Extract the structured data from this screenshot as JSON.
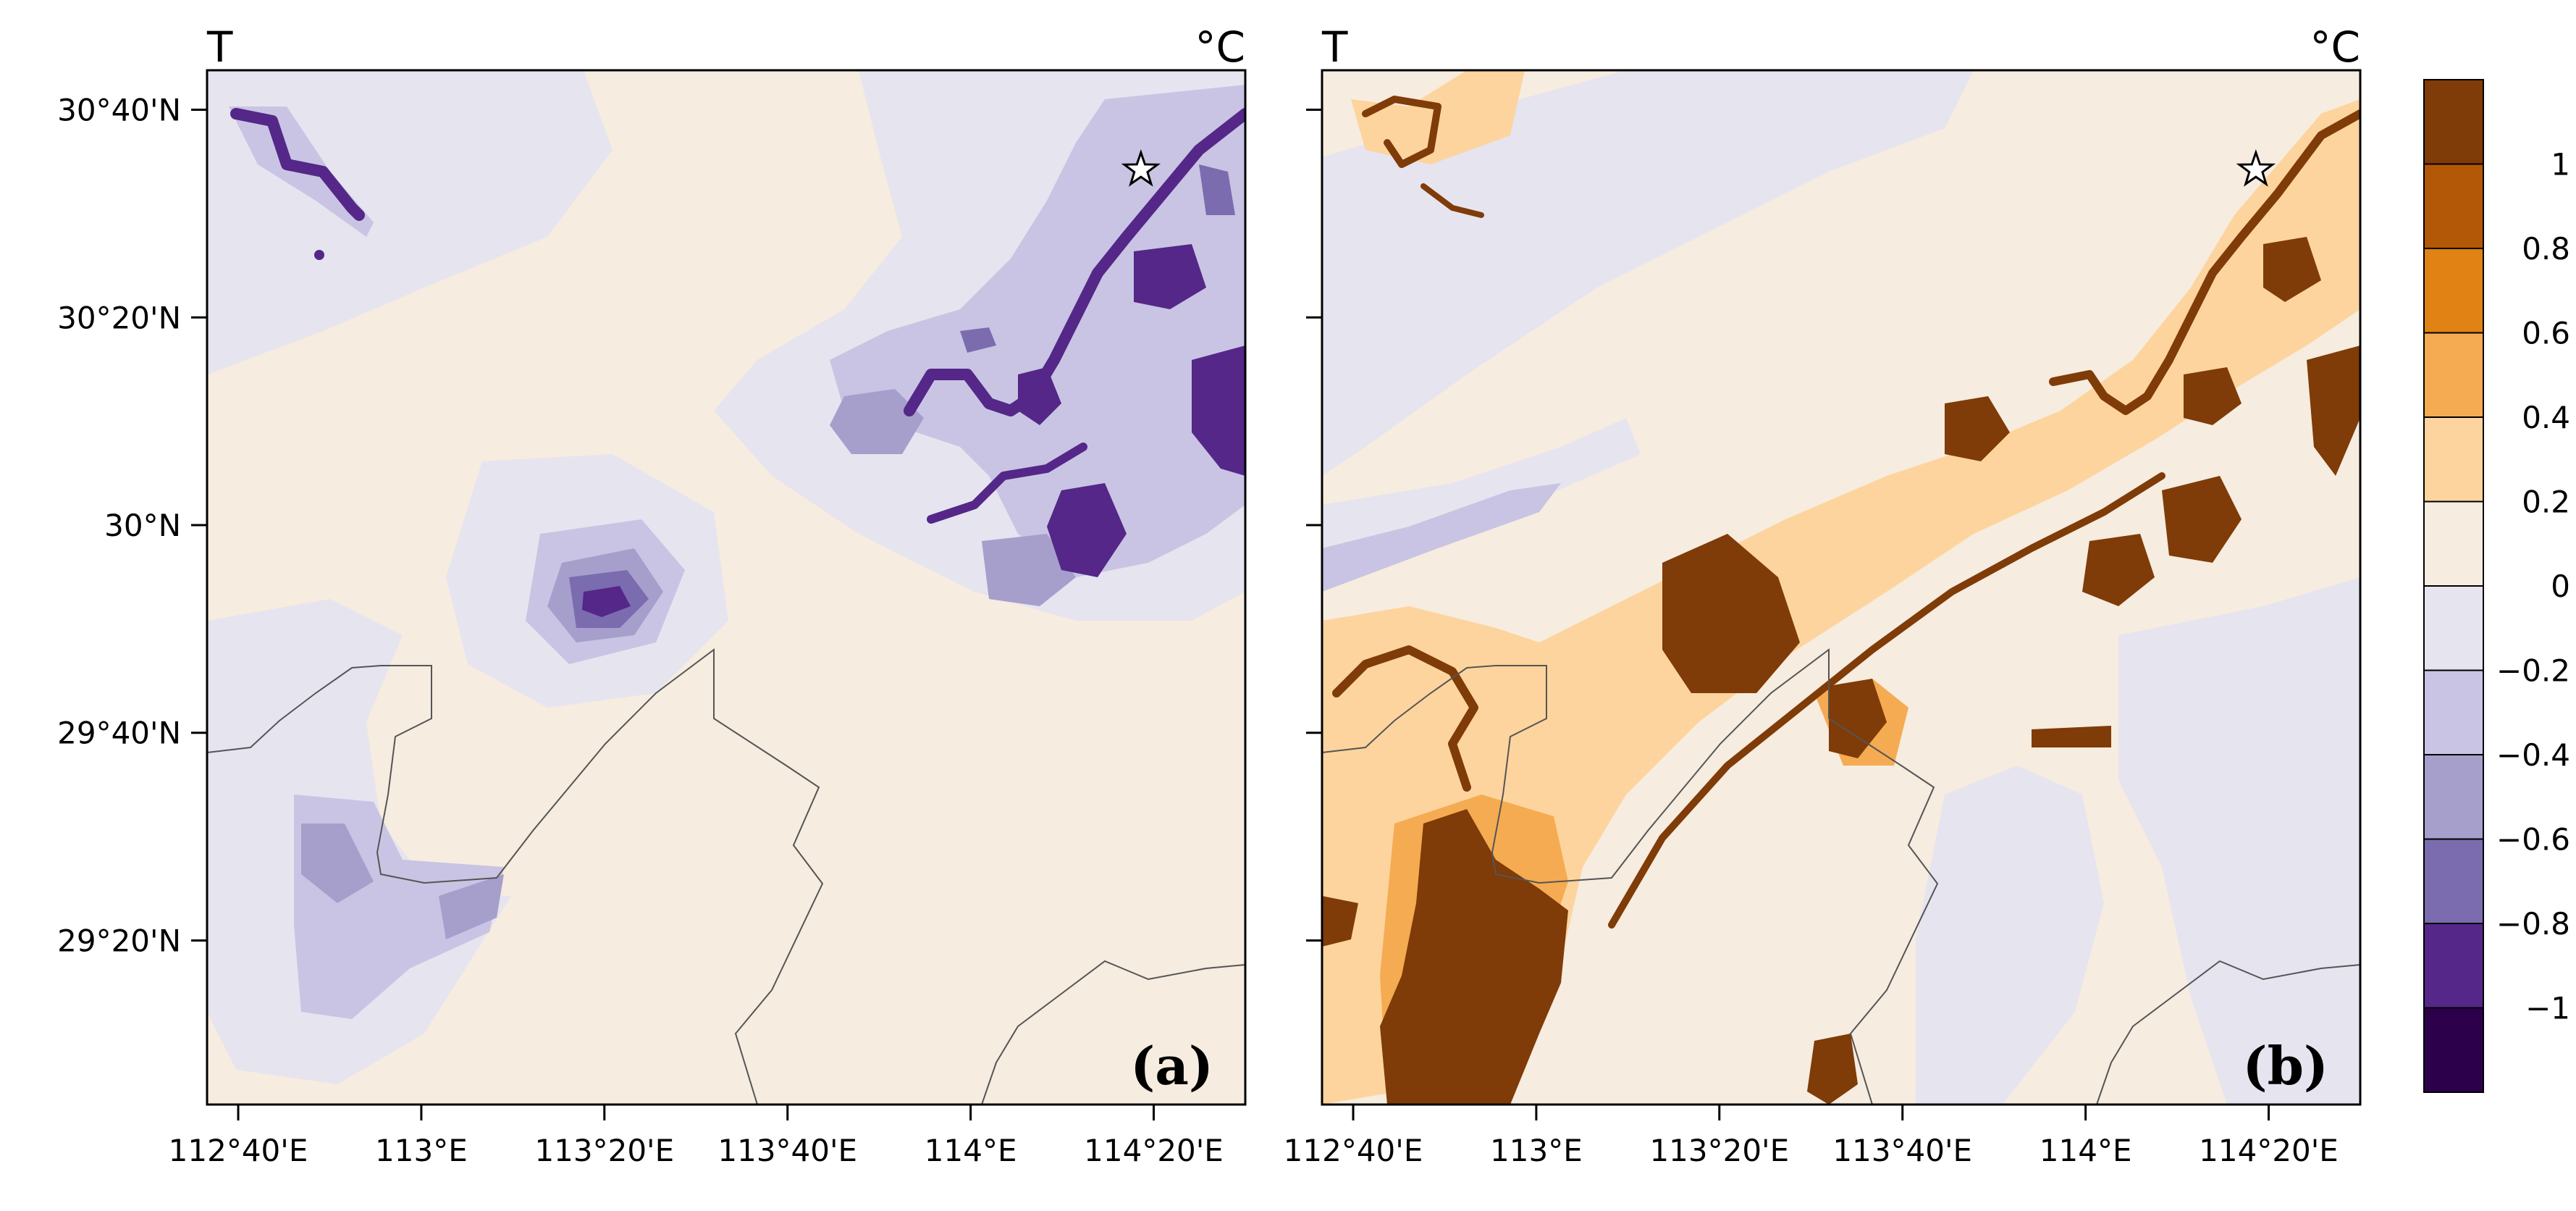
{
  "panels": [
    {
      "id": "a",
      "variable_label": "T",
      "unit_label": "°C",
      "panel_tag": "(a)",
      "anomaly_sign": "negative",
      "background_color": "#f6ecdf"
    },
    {
      "id": "b",
      "variable_label": "T",
      "unit_label": "°C",
      "panel_tag": "(b)",
      "anomaly_sign": "positive",
      "background_color": "#f6ecdf"
    }
  ],
  "axes": {
    "y_ticks": [
      "30°40'N",
      "30°20'N",
      "30°N",
      "29°40'N",
      "29°20'N"
    ],
    "y_tick_values": [
      30.6667,
      30.3333,
      30.0,
      29.6667,
      29.3333
    ],
    "x_ticks": [
      "112°40'E",
      "113°E",
      "113°20'E",
      "113°40'E",
      "114°E",
      "114°20'E"
    ],
    "x_tick_values": [
      112.6667,
      113.0,
      113.3333,
      113.6667,
      114.0,
      114.3333
    ],
    "lon_range": [
      112.61,
      114.5
    ],
    "lat_range": [
      29.07,
      30.73
    ]
  },
  "colorbar": {
    "labels": [
      "1",
      "0.8",
      "0.6",
      "0.4",
      "0.2",
      "0",
      "−0.2",
      "−0.4",
      "−0.6",
      "−0.8",
      "−1"
    ],
    "label_values": [
      1,
      0.8,
      0.6,
      0.4,
      0.2,
      0,
      -0.2,
      -0.4,
      -0.6,
      -0.8,
      -1
    ],
    "colors": [
      "#7f3b08",
      "#b35806",
      "#e08214",
      "#f5ab52",
      "#fdd49e",
      "#f6ecdf",
      "#e6e4ef",
      "#c9c4e3",
      "#a69fcc",
      "#7b6caf",
      "#542788",
      "#2d004b"
    ]
  },
  "marker": {
    "name": "star",
    "lon": 114.31,
    "lat": 30.57
  },
  "palette": {
    "purple": [
      "#e6e4ef",
      "#c9c4e3",
      "#a69fcc",
      "#7b6caf",
      "#542788",
      "#3a0a6a"
    ],
    "brown": [
      "#fbe3c3",
      "#fdd49e",
      "#f5ab52",
      "#e08214",
      "#b35806",
      "#7f3b08"
    ],
    "boundary": "#555555"
  }
}
